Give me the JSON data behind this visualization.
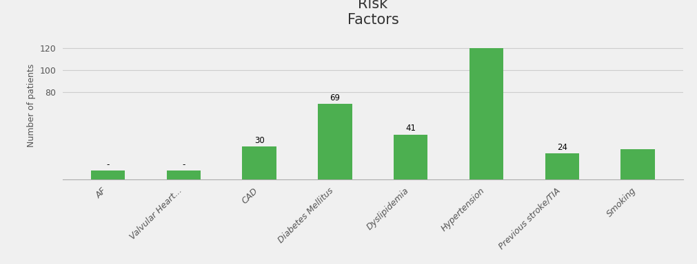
{
  "categories": [
    "AF",
    "Valvular Heart...",
    "CAD",
    "Diabetes Mellitus",
    "Dyslipidemia",
    "Hypertension",
    "Previous stroke/TIA",
    "Smoking"
  ],
  "values": [
    8,
    8,
    30,
    69,
    41,
    120,
    24,
    28
  ],
  "bar_labels": [
    "-",
    "-",
    "30",
    "69",
    "41",
    "",
    "24",
    ""
  ],
  "bar_color": "#4CAF50",
  "title": "Risk\nFactors",
  "ylabel": "Number of patients",
  "yticks": [
    80,
    100,
    120
  ],
  "ylim": [
    0,
    135
  ],
  "background_color": "#f0f0f0",
  "title_fontsize": 15,
  "axis_fontsize": 9,
  "tick_fontsize": 9,
  "label_fontsize": 8.5
}
